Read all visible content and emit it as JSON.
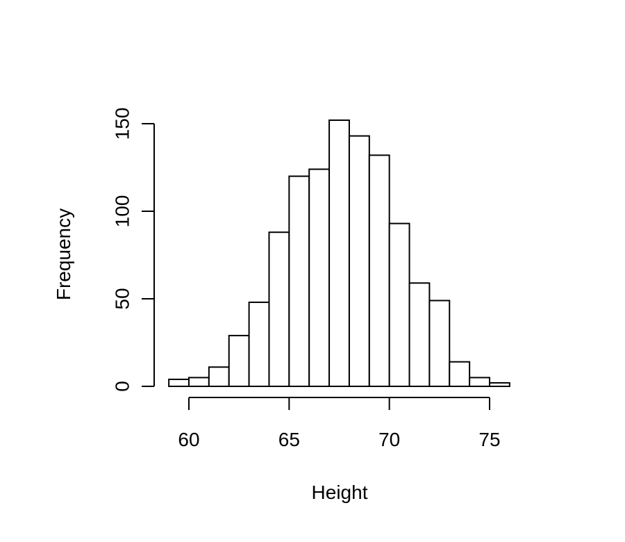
{
  "chart_data": {
    "type": "bar",
    "title": "",
    "xlabel": "Height",
    "ylabel": "Frequency",
    "bin_width": 1,
    "bins": [
      {
        "x0": 59,
        "x1": 60,
        "count": 4
      },
      {
        "x0": 60,
        "x1": 61,
        "count": 5
      },
      {
        "x0": 61,
        "x1": 62,
        "count": 11
      },
      {
        "x0": 62,
        "x1": 63,
        "count": 29
      },
      {
        "x0": 63,
        "x1": 64,
        "count": 48
      },
      {
        "x0": 64,
        "x1": 65,
        "count": 88
      },
      {
        "x0": 65,
        "x1": 66,
        "count": 120
      },
      {
        "x0": 66,
        "x1": 67,
        "count": 124
      },
      {
        "x0": 67,
        "x1": 68,
        "count": 152
      },
      {
        "x0": 68,
        "x1": 69,
        "count": 143
      },
      {
        "x0": 69,
        "x1": 70,
        "count": 132
      },
      {
        "x0": 70,
        "x1": 71,
        "count": 93
      },
      {
        "x0": 71,
        "x1": 72,
        "count": 59
      },
      {
        "x0": 72,
        "x1": 73,
        "count": 49
      },
      {
        "x0": 73,
        "x1": 74,
        "count": 14
      },
      {
        "x0": 74,
        "x1": 75,
        "count": 5
      },
      {
        "x0": 75,
        "x1": 76,
        "count": 2
      }
    ],
    "x_axis": {
      "range": [
        60,
        75
      ],
      "ticks": [
        60,
        65,
        70,
        75
      ]
    },
    "y_axis": {
      "range": [
        0,
        150
      ],
      "ticks": [
        0,
        50,
        100,
        150
      ]
    },
    "grid": false,
    "legend": "none",
    "colors": {
      "bar_fill": "#ffffff",
      "bar_stroke": "#000000"
    }
  }
}
